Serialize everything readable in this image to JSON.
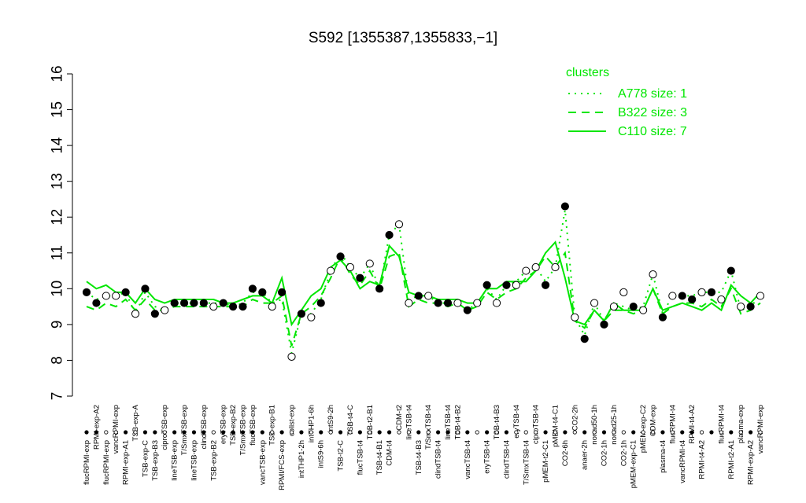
{
  "chart_data": {
    "type": "line",
    "title": "S592 [1355387,1355833,−1]",
    "xlabel": "",
    "ylabel": "",
    "ylim": [
      7,
      16
    ],
    "yticks": [
      7,
      8,
      9,
      10,
      11,
      12,
      13,
      14,
      15,
      16
    ],
    "colors": {
      "series": "#00e600",
      "point_filled": "#000000",
      "point_open": "#ffffff"
    },
    "legend": {
      "title": "clusters",
      "position": "top-right",
      "entries": [
        {
          "label": "A778 size: 1",
          "style": "dotted"
        },
        {
          "label": "B322 size: 3",
          "style": "dashed"
        },
        {
          "label": "C110 size: 7",
          "style": "solid"
        }
      ]
    },
    "categories": [
      "flucRPMI-exp",
      "RPMI-exp-A2",
      "flucRPMI-exp",
      "vancRPMI-exp",
      "RPMI-exp-A1",
      "TSB-exp-A",
      "TSB-exp-C",
      "TSB-exp-B3",
      "ciproTSB-exp",
      "lineTSB-exp",
      "T/SmxTSB-exp",
      "lineTSB-exp",
      "clindTSB-exp",
      "TSB-exp-B2",
      "eryTSB-exp",
      "TSB-exp-B2",
      "T/SmxTSB-exp",
      "flucTSB-exp",
      "vancTSB-exp",
      "TSB-exp-B1",
      "RPMI/FCS-exp",
      "colist-exp",
      "intTHP1-2h",
      "intTHP1-6h",
      "intS9-6h",
      "intS9-2h",
      "TSB-t2-C",
      "TSB-t4-C",
      "flucTSB-t4",
      "TSB-t2-B1",
      "TSB-t4-B1",
      "CDM-t4",
      "CDM-t2",
      "lineTSB-t4",
      "TSB-t4-B3",
      "T/SmxTSB-t4",
      "clindTSB-t4",
      "lineTSB-t4",
      "TSB-t4-B2",
      "vancTSB-t4",
      "TSB-t4-B2",
      "eryTSB-t4",
      "TSB-t4-B3",
      "clindTSB-t4",
      "eryTSB-t4",
      "T/SmxTSB-t4",
      "ciproTSB-t4",
      "pMEM-t2-C1",
      "pMEM-t4-C1",
      "CO2-6h",
      "CO2-2h",
      "anaer-2h",
      "nonad50-1h",
      "CO2-1h",
      "nonad25-1h",
      "CO2-1h",
      "pMEM-exp-C1",
      "pMEM-exp-C2",
      "CDM-exp",
      "plasma-t4",
      "vancRPMI-t4",
      "flucRPMI-t4",
      "RPMI-t4-A2",
      "RPMI-t4-A2",
      "flucRPMI-t4",
      "flucRPMI-t4",
      "RPMI-t2-A1",
      "plasma-exp",
      "RPMI-exp-A2",
      "vancRPMI-exp"
    ],
    "x_tick_labels_top": [
      {
        "label": "RPMI-exp-A2",
        "index": 1
      },
      {
        "label": "vancRPMI-exp",
        "index": 3
      },
      {
        "label": "TSB-exp-A",
        "index": 5
      },
      {
        "label": "ciproTSB-exp",
        "index": 8
      },
      {
        "label": "T/SmxTSB-exp",
        "index": 10
      },
      {
        "label": "clindTSB-exp",
        "index": 12
      },
      {
        "label": "eryTSB-exp",
        "index": 14
      },
      {
        "label": "T/SmxTSB-exp",
        "index": 16
      },
      {
        "label": "flucTSB-exp",
        "index": 17
      },
      {
        "label": "TSB-exp-B2",
        "index": 15
      },
      {
        "label": "TSB-exp-B1",
        "index": 19
      },
      {
        "label": "colist-exp",
        "index": 21
      },
      {
        "label": "intTHP1-6h",
        "index": 23
      },
      {
        "label": "intS9-2h",
        "index": 25
      },
      {
        "label": "TSB-t4-C",
        "index": 27
      },
      {
        "label": "TSB-t2-B1",
        "index": 29
      },
      {
        "label": "CDM-t2",
        "index": 32
      },
      {
        "label": "lineTSB-t4",
        "index": 33
      },
      {
        "label": "T/SmxTSB-t4",
        "index": 35
      },
      {
        "label": "lineTSB-t4",
        "index": 37
      },
      {
        "label": "TSB-t4-B2",
        "index": 38
      },
      {
        "label": "TSB-t4-B3",
        "index": 42
      },
      {
        "label": "eryTSB-t4",
        "index": 44
      },
      {
        "label": "ciproTSB-t4",
        "index": 46
      },
      {
        "label": "pMEM-t4-C1",
        "index": 48
      },
      {
        "label": "CO2-2h",
        "index": 50
      },
      {
        "label": "nonad50-1h",
        "index": 52
      },
      {
        "label": "nonad25-1h",
        "index": 54
      },
      {
        "label": "pMEM-exp-C2",
        "index": 57
      },
      {
        "label": "CDM-exp",
        "index": 58
      },
      {
        "label": "flucRPMI-t4",
        "index": 60
      },
      {
        "label": "RPMI-t4-A2",
        "index": 62
      },
      {
        "label": "flucRPMI-t4",
        "index": 65
      },
      {
        "label": "plasma-exp",
        "index": 67
      },
      {
        "label": "vancRPMI-exp",
        "index": 69
      }
    ],
    "x_tick_labels_bottom": [
      {
        "label": "flucRPMI-exp",
        "index": 0
      },
      {
        "label": "flucRPMI-exp",
        "index": 2
      },
      {
        "label": "RPMI-exp-A1",
        "index": 4
      },
      {
        "label": "TSB-exp-C",
        "index": 6
      },
      {
        "label": "TSB-exp-B3",
        "index": 7
      },
      {
        "label": "lineTSB-exp",
        "index": 9
      },
      {
        "label": "lineTSB-exp",
        "index": 11
      },
      {
        "label": "TSB-exp-B2",
        "index": 13
      },
      {
        "label": "vancTSB-exp",
        "index": 18
      },
      {
        "label": "RPMI/FCS-exp",
        "index": 20
      },
      {
        "label": "intTHP1-2h",
        "index": 22
      },
      {
        "label": "intS9-6h",
        "index": 24
      },
      {
        "label": "TSB-t2-C",
        "index": 26
      },
      {
        "label": "flucTSB-t4",
        "index": 28
      },
      {
        "label": "TSB-t4-B1",
        "index": 30
      },
      {
        "label": "CDM-t4",
        "index": 31
      },
      {
        "label": "TSB-t4-B3",
        "index": 34
      },
      {
        "label": "clindTSB-t4",
        "index": 36
      },
      {
        "label": "vancTSB-t4",
        "index": 39
      },
      {
        "label": "eryTSB-t4",
        "index": 41
      },
      {
        "label": "clindTSB-t4",
        "index": 43
      },
      {
        "label": "T/SmxTSB-t4",
        "index": 45
      },
      {
        "label": "pMEM-t2-C1",
        "index": 47
      },
      {
        "label": "CO2-6h",
        "index": 49
      },
      {
        "label": "anaer-2h",
        "index": 51
      },
      {
        "label": "CO2-1h",
        "index": 53
      },
      {
        "label": "CO2-1h",
        "index": 55
      },
      {
        "label": "pMEM-exp-C1",
        "index": 56
      },
      {
        "label": "plasma-t4",
        "index": 59
      },
      {
        "label": "vancRPMI-t4",
        "index": 61
      },
      {
        "label": "RPMI-t4-A2",
        "index": 63
      },
      {
        "label": "RPMI-t2-A1",
        "index": 66
      },
      {
        "label": "RPMI-exp-A2",
        "index": 68
      }
    ],
    "series": [
      {
        "name": "A778 size: 1",
        "style": "dotted",
        "values": [
          9.9,
          9.7,
          9.8,
          9.8,
          9.9,
          9.3,
          9.9,
          9.5,
          9.4,
          9.6,
          9.6,
          9.6,
          9.6,
          9.6,
          9.6,
          9.5,
          9.6,
          9.9,
          9.9,
          9.6,
          9.7,
          8.2,
          9.3,
          9.3,
          9.7,
          10.5,
          11.0,
          10.6,
          10.3,
          10.7,
          10.0,
          11.5,
          11.8,
          9.7,
          9.8,
          9.8,
          9.6,
          9.6,
          9.6,
          9.4,
          9.6,
          10.0,
          9.7,
          10.1,
          10.2,
          10.5,
          10.6,
          10.2,
          10.6,
          12.2,
          9.2,
          8.7,
          9.6,
          9.1,
          9.6,
          9.5,
          9.4,
          9.5,
          10.4,
          9.3,
          9.8,
          9.8,
          9.8,
          9.9,
          9.9,
          9.9,
          10.5,
          9.4,
          9.5,
          9.8
        ]
      },
      {
        "name": "B322 size: 3",
        "style": "dashed",
        "values": [
          9.5,
          9.4,
          9.6,
          9.5,
          9.7,
          9.4,
          9.7,
          9.4,
          9.4,
          9.5,
          9.5,
          9.5,
          9.5,
          9.5,
          9.5,
          9.5,
          9.5,
          9.7,
          9.6,
          9.6,
          9.8,
          8.4,
          9.3,
          9.5,
          9.8,
          10.3,
          10.9,
          10.4,
          10.1,
          10.5,
          10.0,
          10.9,
          11.0,
          9.5,
          9.7,
          9.6,
          9.6,
          9.5,
          9.6,
          9.4,
          9.5,
          9.9,
          9.7,
          9.9,
          10.0,
          10.3,
          10.5,
          10.9,
          10.6,
          11.0,
          9.1,
          8.9,
          9.4,
          9.1,
          9.4,
          9.4,
          9.3,
          9.4,
          10.0,
          9.3,
          9.5,
          9.6,
          9.6,
          9.5,
          9.7,
          9.5,
          10.0,
          9.3,
          9.4,
          9.6
        ]
      },
      {
        "name": "C110 size: 7",
        "style": "solid",
        "values": [
          10.2,
          10.0,
          10.1,
          9.9,
          9.9,
          9.6,
          10.0,
          9.7,
          9.6,
          9.7,
          9.7,
          9.7,
          9.7,
          9.7,
          9.6,
          9.6,
          9.7,
          9.8,
          9.8,
          9.6,
          10.3,
          9.0,
          9.4,
          9.8,
          10.0,
          10.6,
          10.8,
          10.5,
          10.0,
          10.2,
          10.1,
          11.2,
          10.9,
          9.9,
          9.8,
          9.8,
          9.7,
          9.7,
          9.7,
          9.6,
          9.6,
          10.0,
          10.0,
          10.2,
          10.2,
          10.2,
          10.5,
          11.0,
          11.3,
          10.3,
          9.1,
          9.0,
          9.4,
          9.1,
          9.6,
          9.4,
          9.4,
          9.4,
          10.0,
          9.4,
          9.5,
          9.6,
          9.5,
          9.4,
          9.6,
          9.4,
          10.1,
          9.8,
          9.6,
          9.9
        ]
      }
    ],
    "points": {
      "values": [
        9.9,
        9.6,
        9.8,
        9.8,
        9.9,
        9.3,
        10.0,
        9.3,
        9.4,
        9.6,
        9.6,
        9.6,
        9.6,
        9.5,
        9.6,
        9.5,
        9.5,
        10.0,
        9.9,
        9.5,
        9.9,
        8.1,
        9.3,
        9.2,
        9.6,
        10.5,
        10.9,
        10.6,
        10.3,
        10.7,
        10.0,
        11.5,
        11.8,
        9.6,
        9.8,
        9.8,
        9.6,
        9.6,
        9.6,
        9.4,
        9.6,
        10.1,
        9.6,
        10.1,
        10.1,
        10.5,
        10.6,
        10.1,
        10.6,
        12.3,
        9.2,
        8.6,
        9.6,
        9.0,
        9.5,
        9.9,
        9.5,
        9.4,
        10.4,
        9.2,
        9.8,
        9.8,
        9.7,
        9.9,
        9.9,
        9.7,
        10.5,
        9.5,
        9.5,
        9.8
      ],
      "filled": [
        true,
        true,
        false,
        false,
        true,
        false,
        true,
        true,
        false,
        true,
        true,
        true,
        true,
        false,
        true,
        true,
        true,
        true,
        true,
        false,
        true,
        false,
        true,
        false,
        true,
        false,
        true,
        false,
        true,
        false,
        true,
        true,
        false,
        false,
        true,
        false,
        true,
        true,
        false,
        true,
        false,
        true,
        false,
        true,
        false,
        false,
        false,
        true,
        false,
        true,
        false,
        true,
        false,
        true,
        false,
        false,
        true,
        false,
        false,
        true,
        false,
        true,
        true,
        false,
        true,
        false,
        true,
        false,
        true,
        false
      ]
    }
  }
}
